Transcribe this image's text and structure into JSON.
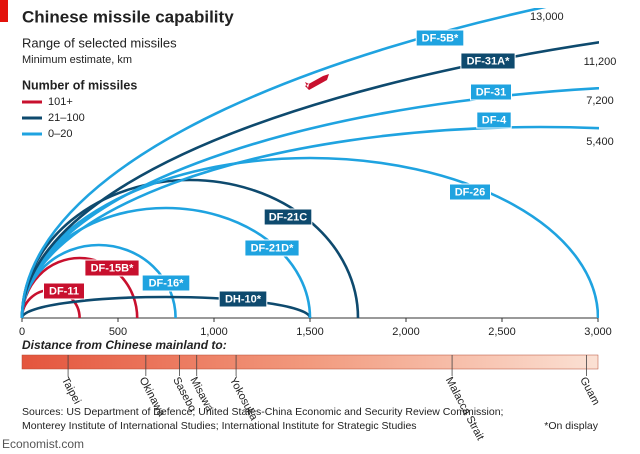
{
  "chart_data": {
    "type": "arc",
    "title": "Chinese missile capability",
    "subtitle": "Range of selected missiles",
    "subtitle2": "Minimum estimate, km",
    "legend_title": "Number of missiles",
    "groups": [
      {
        "name": "101+",
        "color": "#c8102e"
      },
      {
        "name": "21–100",
        "color": "#0e4a6e"
      },
      {
        "name": "0–20",
        "color": "#1fa3e0"
      }
    ],
    "missiles": [
      {
        "name": "DF-11",
        "group": 0,
        "range": 300
      },
      {
        "name": "DF-15B*",
        "group": 0,
        "range": 600
      },
      {
        "name": "DF-16*",
        "group": 2,
        "range": 800
      },
      {
        "name": "DH-10*",
        "group": 1,
        "range": 1500
      },
      {
        "name": "DF-21D*",
        "group": 2,
        "range": 1500
      },
      {
        "name": "DF-21C",
        "group": 1,
        "range": 1750
      },
      {
        "name": "DF-26",
        "group": 2,
        "range": 3000
      },
      {
        "name": "DF-4",
        "group": 2,
        "range": 5400,
        "range_label": "5,400"
      },
      {
        "name": "DF-31",
        "group": 2,
        "range": 7200,
        "range_label": "7,200"
      },
      {
        "name": "DF-31A*",
        "group": 1,
        "range": 11200,
        "range_label": "11,200"
      },
      {
        "name": "DF-5B*",
        "group": 2,
        "range": 13000,
        "range_label": "13,000"
      }
    ],
    "xlim": [
      0,
      3000
    ],
    "xticks": [
      0,
      500,
      {
        "value": 1000,
        "label": "1,000"
      },
      {
        "value": 1500,
        "label": "1,500"
      },
      {
        "value": 2000,
        "label": "2,000"
      },
      {
        "value": 2500,
        "label": "2,500"
      },
      {
        "value": 3000,
        "label": "3,000"
      }
    ],
    "distance_title": "Distance from Chinese mainland to:",
    "places": [
      {
        "name": "Taipei",
        "distance": 240
      },
      {
        "name": "Okinawa",
        "distance": 645
      },
      {
        "name": "Sasebo",
        "distance": 820
      },
      {
        "name": "Misawa",
        "distance": 910
      },
      {
        "name": "Yokosuka",
        "distance": 1115
      },
      {
        "name": "Malacca Strait",
        "distance": 2240
      },
      {
        "name": "Guam",
        "distance": 2940
      }
    ],
    "sources": [
      "Sources: US Department of Defence; United States-China Economic and Security Review Commission;",
      "Monterey Institute of International Studies; International Institute for Strategic Studies"
    ],
    "note": "*On display",
    "brand": "Economist.com"
  }
}
